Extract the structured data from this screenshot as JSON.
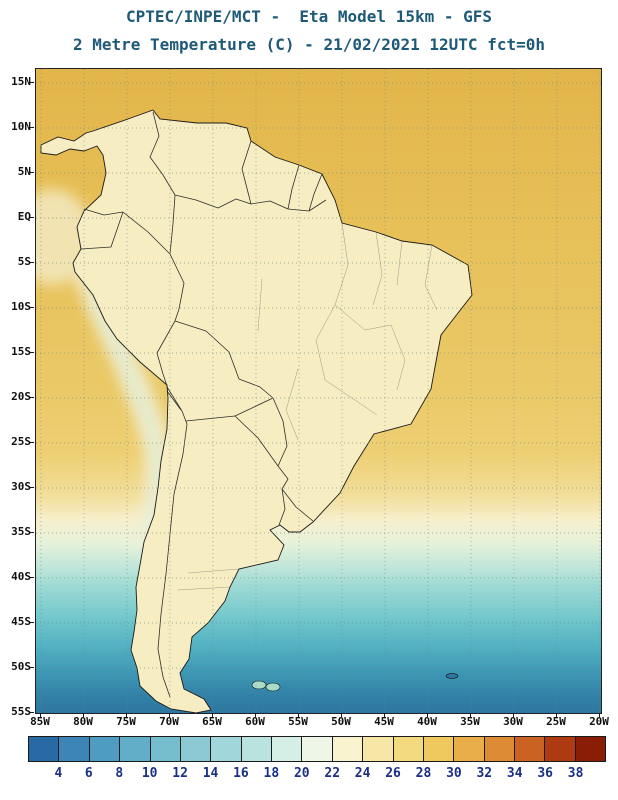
{
  "header": {
    "title_line1": "CPTEC/INPE/MCT -  Eta Model 15km - GFS",
    "title_line2": "2 Metre Temperature (C) - 21/02/2021 12UTC fct=0h"
  },
  "map": {
    "lat_labels": [
      "15N",
      "10N",
      "5N",
      "EQ",
      "5S",
      "10S",
      "15S",
      "20S",
      "25S",
      "30S",
      "35S",
      "40S",
      "45S",
      "50S",
      "55S"
    ],
    "lon_labels": [
      "85W",
      "80W",
      "75W",
      "70W",
      "65W",
      "60W",
      "55W",
      "50W",
      "45W",
      "40W",
      "35W",
      "30W",
      "25W",
      "20W"
    ]
  },
  "colorbar": {
    "tick_labels": [
      "4",
      "6",
      "8",
      "10",
      "12",
      "14",
      "16",
      "18",
      "20",
      "22",
      "24",
      "26",
      "28",
      "30",
      "32",
      "34",
      "36",
      "38"
    ],
    "segment_colors": [
      "#2a6aa4",
      "#3d85b6",
      "#4f9cc2",
      "#62aec9",
      "#76bdce",
      "#8bcad4",
      "#a1d7da",
      "#bae3e0",
      "#d5eee6",
      "#eef6e8",
      "#f8f2cf",
      "#f6e7a6",
      "#f3da7f",
      "#efc95d",
      "#e9ae49",
      "#de8b36",
      "#c96222",
      "#ad3a10",
      "#8a1d05"
    ]
  },
  "colors": {
    "title_text": "#1e5a78",
    "axis_text": "#101010",
    "colorbar_tick_text": "#1c2f86",
    "land_base": "#f6edc2",
    "cold_andes_core": "#17639c",
    "warm_ocean": "#e7c058"
  }
}
